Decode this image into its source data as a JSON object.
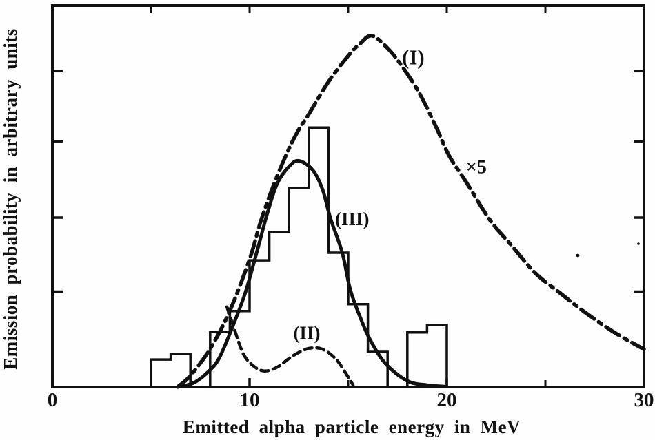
{
  "figure": {
    "kind": "scanned line chart with histogram overlay",
    "background": "#fefefe",
    "ink_color": "#111111"
  },
  "chart_data": {
    "type": "line",
    "title": "",
    "xlabel": "Emitted alpha particle energy in MeV",
    "ylabel": "Emission probability in arbitrary units",
    "xlim": [
      0,
      30
    ],
    "ylim": [
      0,
      1
    ],
    "grid": false,
    "legend": "inline curve labels",
    "y_axis_note": "unlabeled tick marks (arbitrary units)",
    "x_major_ticks": [
      0,
      10,
      20,
      30
    ],
    "x_major_tick_labels": [
      "0",
      "10",
      "20",
      "30"
    ],
    "x_minor_ticks_bottom": [
      5,
      15,
      25
    ],
    "x_ticks_top": [
      5,
      10,
      15,
      20,
      25
    ],
    "y_tick_fractions_from_top": [
      0.172,
      0.356,
      0.556,
      0.75
    ],
    "series": [
      {
        "name": "(I)",
        "line_style": "dash-dot",
        "note": "curve scaled ×5",
        "points": [
          [
            6.35,
            0
          ],
          [
            7,
            0.03
          ],
          [
            8,
            0.1
          ],
          [
            9,
            0.2
          ],
          [
            10,
            0.335
          ],
          [
            10.6,
            0.44
          ],
          [
            11.3,
            0.54
          ],
          [
            12,
            0.625
          ],
          [
            12.5,
            0.675
          ],
          [
            13,
            0.715
          ],
          [
            14,
            0.8
          ],
          [
            15,
            0.868
          ],
          [
            15.6,
            0.9
          ],
          [
            16.2,
            0.921
          ],
          [
            17,
            0.888
          ],
          [
            17.7,
            0.843
          ],
          [
            18.6,
            0.771
          ],
          [
            19.5,
            0.677
          ],
          [
            20.1,
            0.608
          ],
          [
            21,
            0.536
          ],
          [
            22.2,
            0.437
          ],
          [
            23.3,
            0.37
          ],
          [
            24.5,
            0.298
          ],
          [
            25.8,
            0.244
          ],
          [
            27,
            0.196
          ],
          [
            28.5,
            0.143
          ],
          [
            30,
            0.099
          ]
        ]
      },
      {
        "name": "(II)",
        "line_style": "dashed",
        "points": [
          [
            8.85,
            0.21
          ],
          [
            9.3,
            0.14
          ],
          [
            9.7,
            0.085
          ],
          [
            10.2,
            0.055
          ],
          [
            10.75,
            0.042
          ],
          [
            11.4,
            0.052
          ],
          [
            12.2,
            0.082
          ],
          [
            13,
            0.101
          ],
          [
            13.7,
            0.099
          ],
          [
            14.4,
            0.072
          ],
          [
            15,
            0.026
          ],
          [
            15.25,
            0.005
          ]
        ]
      },
      {
        "name": "(III)",
        "line_style": "solid",
        "points": [
          [
            6.35,
            0
          ],
          [
            7.2,
            0.012
          ],
          [
            8,
            0.045
          ],
          [
            8.5,
            0.08
          ],
          [
            9.2,
            0.166
          ],
          [
            9.8,
            0.25
          ],
          [
            10.4,
            0.36
          ],
          [
            10.9,
            0.455
          ],
          [
            11.4,
            0.533
          ],
          [
            12,
            0.578
          ],
          [
            12.5,
            0.593
          ],
          [
            13.2,
            0.569
          ],
          [
            13.7,
            0.518
          ],
          [
            14.1,
            0.442
          ],
          [
            14.7,
            0.352
          ],
          [
            15.1,
            0.256
          ],
          [
            15.6,
            0.184
          ],
          [
            16.1,
            0.125
          ],
          [
            16.9,
            0.061
          ],
          [
            18,
            0.016
          ],
          [
            19,
            0.005
          ],
          [
            20,
            0.001
          ]
        ]
      },
      {
        "name": "histogram",
        "line_style": "steps",
        "bin_edges": [
          5,
          6,
          7,
          8,
          9,
          10,
          11,
          12,
          13,
          14,
          15,
          16,
          17,
          18,
          19,
          20
        ],
        "values": [
          0.072,
          0.087,
          0,
          0.144,
          0.199,
          0.332,
          0.406,
          0.522,
          0.68,
          0.352,
          0.217,
          0.092,
          0,
          0.143,
          0.162
        ]
      }
    ],
    "annotations": [
      {
        "id": "label-I",
        "text": "(I)",
        "x": 18.3,
        "v": 0.865,
        "font_px": 31
      },
      {
        "id": "label-x5",
        "text": "×5",
        "x": 21.5,
        "v": 0.576,
        "font_px": 28
      },
      {
        "id": "label-III",
        "text": "(III)",
        "x": 15.2,
        "v": 0.44,
        "font_px": 27
      },
      {
        "id": "label-II",
        "text": "(II)",
        "x": 12.9,
        "v": 0.142,
        "font_px": 27
      }
    ]
  }
}
